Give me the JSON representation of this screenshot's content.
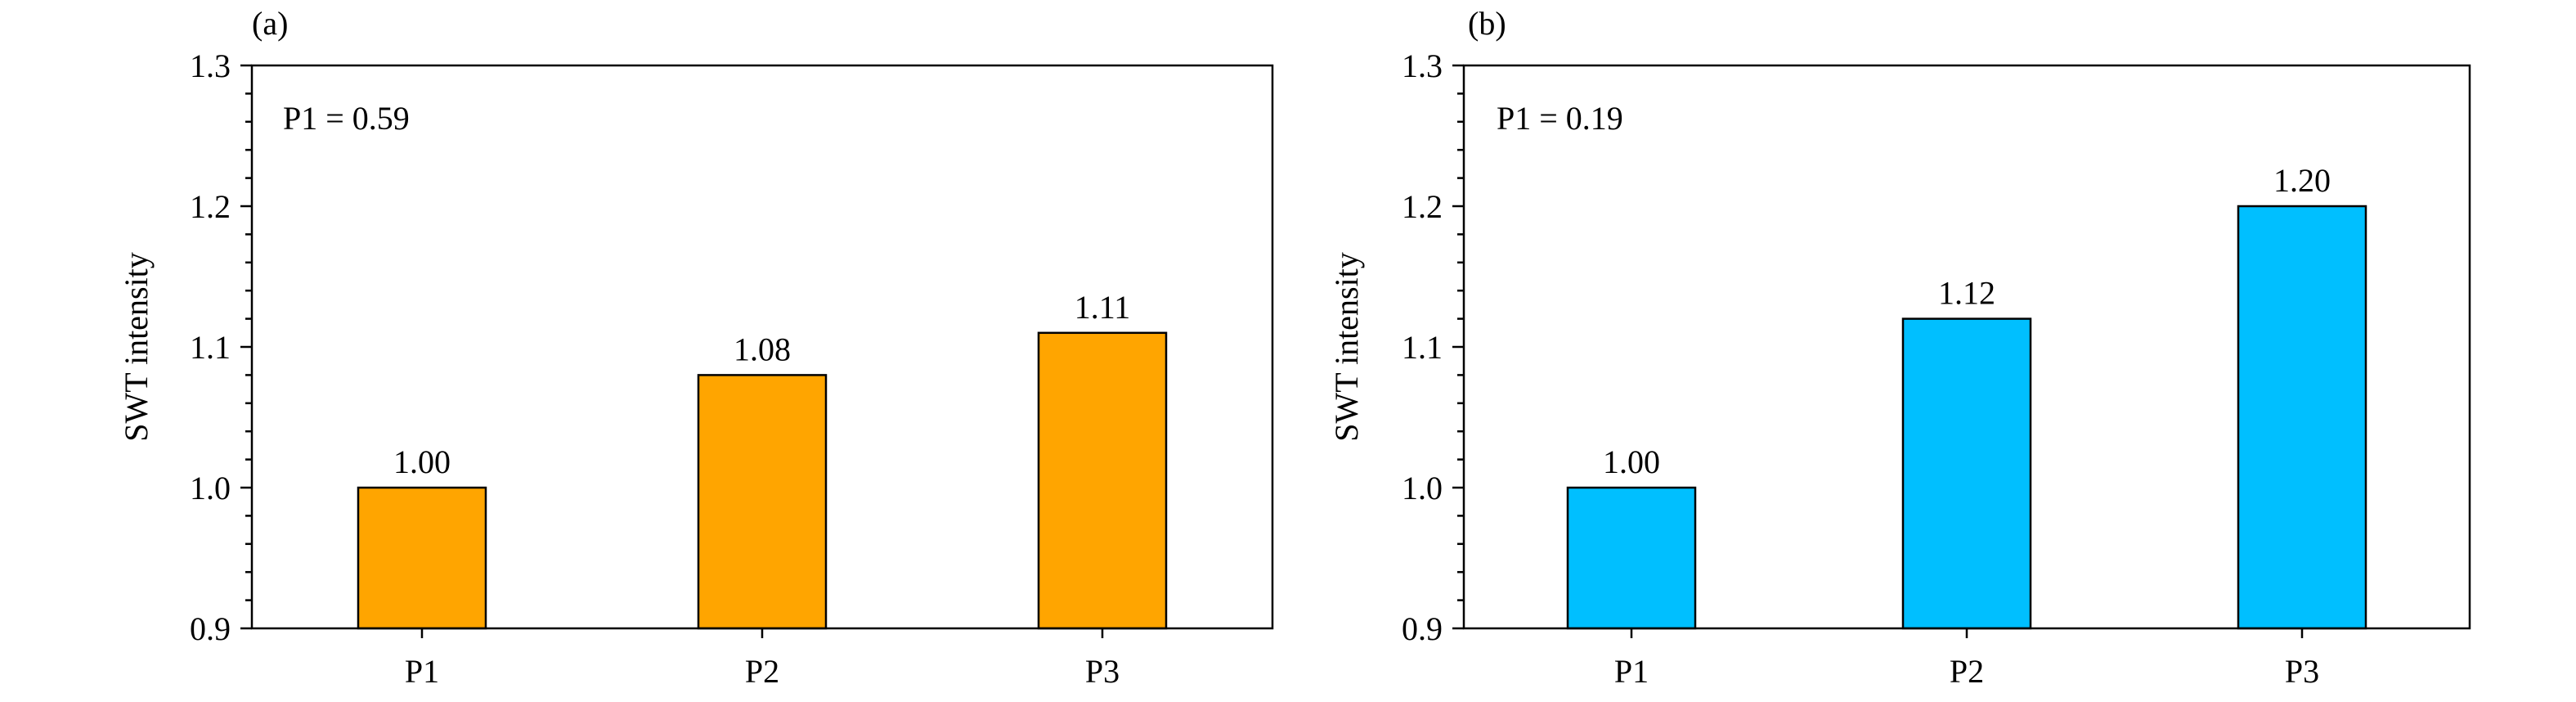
{
  "chart_data": [
    {
      "type": "bar",
      "panel_label": "(a)",
      "annotation": "P1 = 0.59",
      "categories": [
        "P1",
        "P2",
        "P3"
      ],
      "values": [
        1.0,
        1.08,
        1.11
      ],
      "value_labels": [
        "1.00",
        "1.08",
        "1.11"
      ],
      "ylabel": "SWT intensity",
      "xlabel": "",
      "ylim": [
        0.9,
        1.3
      ],
      "yticks": [
        0.9,
        1.0,
        1.1,
        1.2,
        1.3
      ],
      "ytick_labels": [
        "0.9",
        "1.0",
        "1.1",
        "1.2",
        "1.3"
      ],
      "bar_color": "#FFA500",
      "grid": false
    },
    {
      "type": "bar",
      "panel_label": "(b)",
      "annotation": "P1 = 0.19",
      "categories": [
        "P1",
        "P2",
        "P3"
      ],
      "values": [
        1.0,
        1.12,
        1.2
      ],
      "value_labels": [
        "1.00",
        "1.12",
        "1.20"
      ],
      "ylabel": "SWT intensity",
      "xlabel": "",
      "ylim": [
        0.9,
        1.3
      ],
      "yticks": [
        0.9,
        1.0,
        1.1,
        1.2,
        1.3
      ],
      "ytick_labels": [
        "0.9",
        "1.0",
        "1.1",
        "1.2",
        "1.3"
      ],
      "bar_color": "#00BFFF",
      "grid": false
    }
  ]
}
